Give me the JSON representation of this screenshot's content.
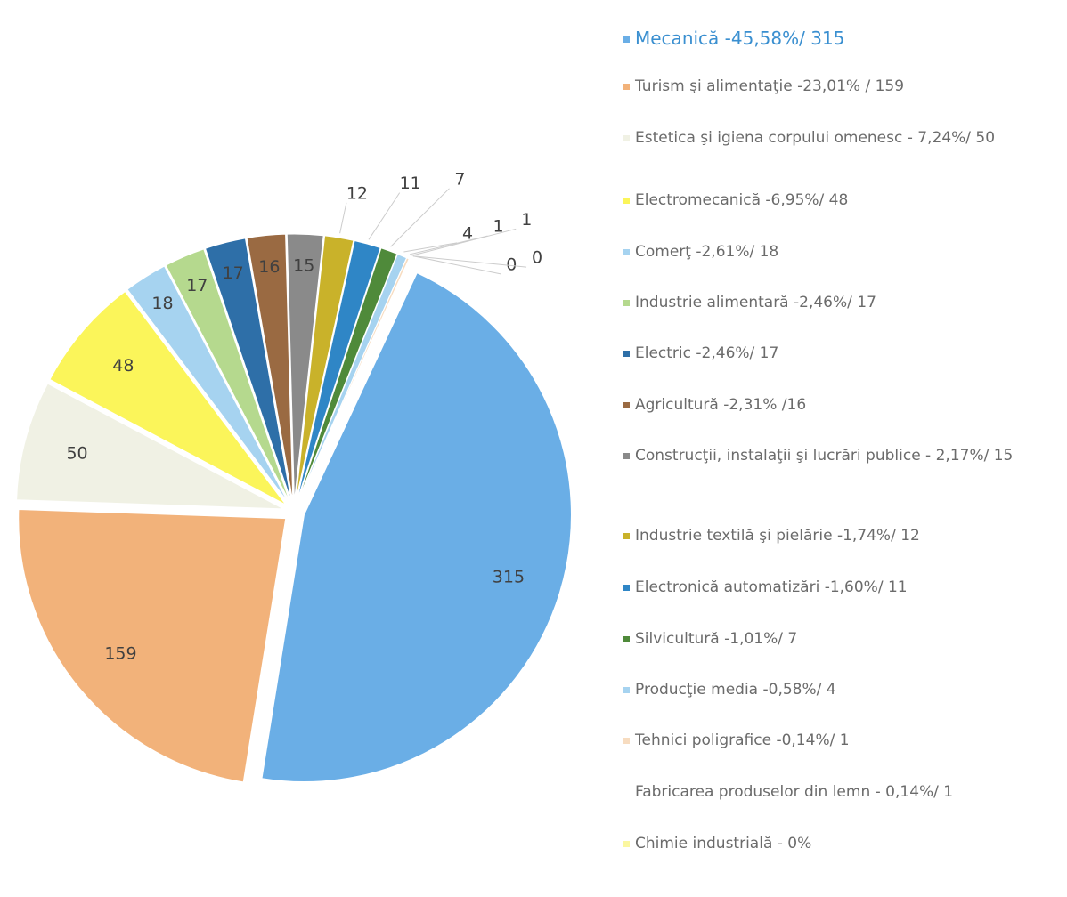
{
  "chart_data": {
    "type": "pie",
    "categories": [
      "Mecanică -45,58%/ 315",
      "Turism şi alimentaţie -23,01% / 159",
      "Estetica  şi igiena corpului omenesc - 7,24%/ 50",
      "Electromecanică -6,95%/ 48",
      "Comerţ -2,61%/ 18",
      "Industrie alimentară -2,46%/ 17",
      "Electric -2,46%/ 17",
      "Agricultură -2,31% /16",
      "Construcţii, instalaţii şi lucrări publice - 2,17%/ 15",
      "Industrie textilă şi pielărie -1,74%/ 12",
      "Electronică automatizări -1,60%/ 11",
      "Silvicultură -1,01%/ 7",
      "Producţie media -0,58%/ 4",
      "Tehnici poligrafice  -0,14%/ 1",
      "Fabricarea produselor din lemn - 0,14%/ 1",
      "Chimie industrială - 0%",
      null
    ],
    "values": [
      315,
      159,
      50,
      48,
      18,
      17,
      17,
      16,
      15,
      12,
      11,
      7,
      4,
      1,
      1,
      0,
      0
    ],
    "colors": [
      "#6aaee6",
      "#f2b27a",
      "#f0f1e4",
      "#fbf55a",
      "#a6d3f0",
      "#b5d98e",
      "#2e6fa8",
      "#9a6a42",
      "#8a8a8a",
      "#c9b22a",
      "#2f86c6",
      "#4f8a3a",
      "#a6d3f0",
      "#f7dcc0",
      "#ffffff",
      "#fbf7a0",
      "#dddddd"
    ],
    "legend": "right"
  }
}
